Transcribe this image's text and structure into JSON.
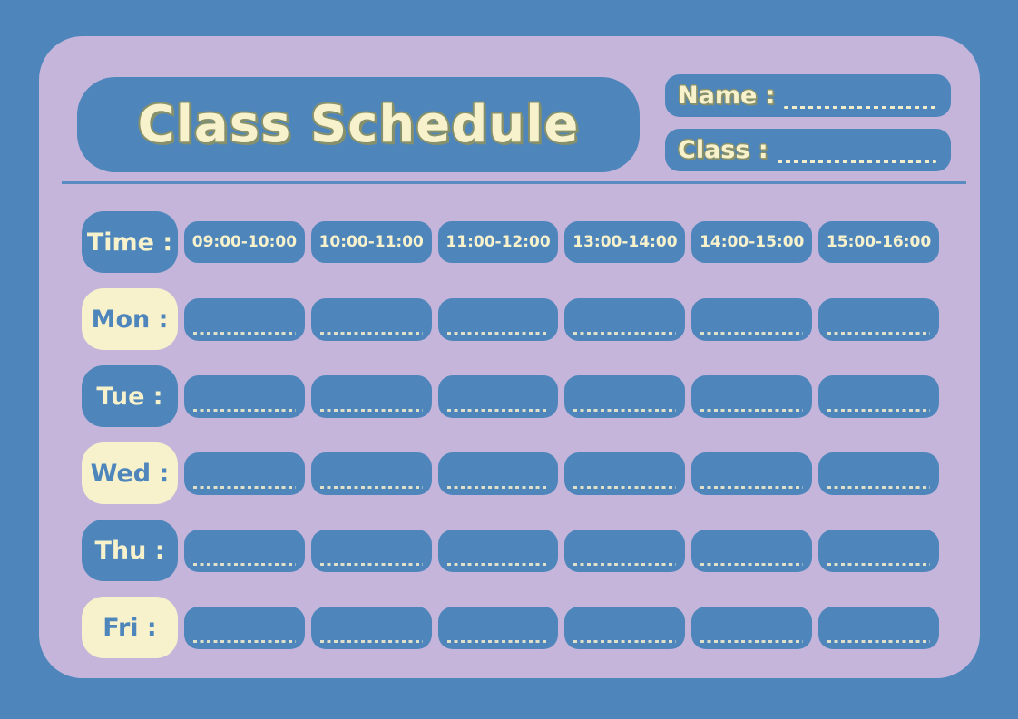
{
  "title": "Class Schedule",
  "fields": [
    {
      "label": "Name :"
    },
    {
      "label": "Class :"
    }
  ],
  "schedule": {
    "time_label": "Time :",
    "time_slots": [
      "09:00-10:00",
      "10:00-11:00",
      "11:00-12:00",
      "13:00-14:00",
      "14:00-15:00",
      "15:00-16:00"
    ],
    "days": [
      {
        "label": "Mon :",
        "style": "cream"
      },
      {
        "label": "Tue :",
        "style": "blue"
      },
      {
        "label": "Wed :",
        "style": "cream"
      },
      {
        "label": "Thu :",
        "style": "blue"
      },
      {
        "label": "Fri :",
        "style": "cream"
      }
    ]
  },
  "colors": {
    "background_blue": "#4E86BC",
    "card_purple": "#C5B5DA",
    "pill_blue": "#4E86BC",
    "cream": "#F7F1CC",
    "title_outline_olive": "#86906B"
  }
}
